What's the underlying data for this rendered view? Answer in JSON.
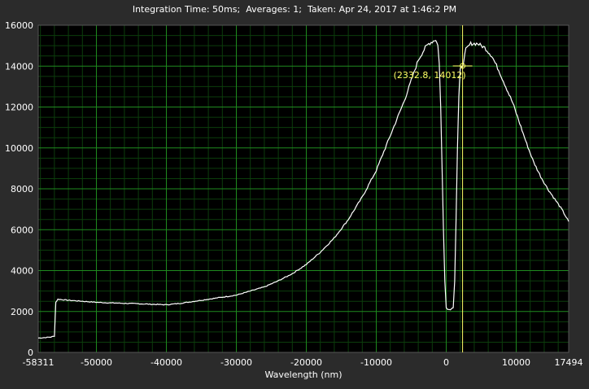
{
  "header": {
    "title": "Integration Time: 50ms;  Averages: 1;  Taken: Apr 24, 2017 at 1:46:2 PM"
  },
  "colors": {
    "background": "#2b2b2b",
    "plot_background": "#000000",
    "grid_major": "#1f8a1f",
    "grid_minor": "#0c3d0c",
    "trace": "#ffffff",
    "cursor": "#ffff66"
  },
  "chart_data": {
    "type": "line",
    "title": "Integration Time: 50ms;  Averages: 1;  Taken: Apr 24, 2017 at 1:46:2 PM",
    "xlabel": "Wavelength (nm)",
    "ylabel": "",
    "xlim": [
      -58311,
      17494
    ],
    "ylim": [
      0,
      16000
    ],
    "grid": true,
    "x_tick_labels": [
      "-58311",
      "-50000",
      "-40000",
      "-30000",
      "-20000",
      "-10000",
      "0",
      "10000",
      "17494"
    ],
    "x_ticks": [
      -58311,
      -50000,
      -40000,
      -30000,
      -20000,
      -10000,
      0,
      10000,
      17494
    ],
    "y_tick_labels": [
      "0",
      "2000",
      "4000",
      "6000",
      "8000",
      "10000",
      "12000",
      "14000",
      "16000"
    ],
    "y_ticks": [
      0,
      2000,
      4000,
      6000,
      8000,
      10000,
      12000,
      14000,
      16000
    ],
    "series": [
      {
        "x": [
          -58311,
          -56500,
          -56000,
          -55800,
          -55500,
          -55000,
          -54000,
          -52000,
          -50000,
          -48000,
          -46000,
          -44000,
          -42000,
          -40000,
          -38000,
          -36000,
          -34000,
          -32000,
          -30000,
          -28000,
          -26000,
          -24000,
          -22000,
          -20000,
          -18000,
          -16000,
          -14000,
          -12000,
          -10000,
          -8000,
          -6000,
          -5000,
          -4000,
          -3000,
          -2500,
          -2000,
          -1500,
          -1200,
          -1000,
          -800,
          -600,
          -400,
          -200,
          0,
          200,
          600,
          1000,
          1200,
          1400,
          1600,
          1800,
          2000,
          2332.8,
          2800,
          3500,
          4500,
          5500,
          6500,
          7500,
          8500,
          9500,
          10500,
          11500,
          12500,
          13500,
          14500,
          15500,
          16500,
          17494
        ],
        "y": [
          700,
          750,
          800,
          2450,
          2600,
          2580,
          2550,
          2500,
          2450,
          2420,
          2400,
          2380,
          2350,
          2330,
          2400,
          2500,
          2600,
          2700,
          2800,
          3000,
          3200,
          3500,
          3850,
          4300,
          4900,
          5600,
          6500,
          7600,
          8900,
          10600,
          12300,
          13300,
          14300,
          14900,
          15100,
          15200,
          15300,
          15000,
          14200,
          12000,
          9000,
          6000,
          3500,
          2200,
          2100,
          2100,
          2200,
          3500,
          6500,
          10000,
          12500,
          13800,
          14012,
          14800,
          15100,
          15100,
          14900,
          14500,
          13800,
          13000,
          12200,
          11200,
          10200,
          9300,
          8600,
          8000,
          7500,
          7000,
          6400
        ]
      }
    ],
    "cursor": {
      "x": 2332.8,
      "y": 14012,
      "label": "(2332.8, 14012)"
    }
  }
}
